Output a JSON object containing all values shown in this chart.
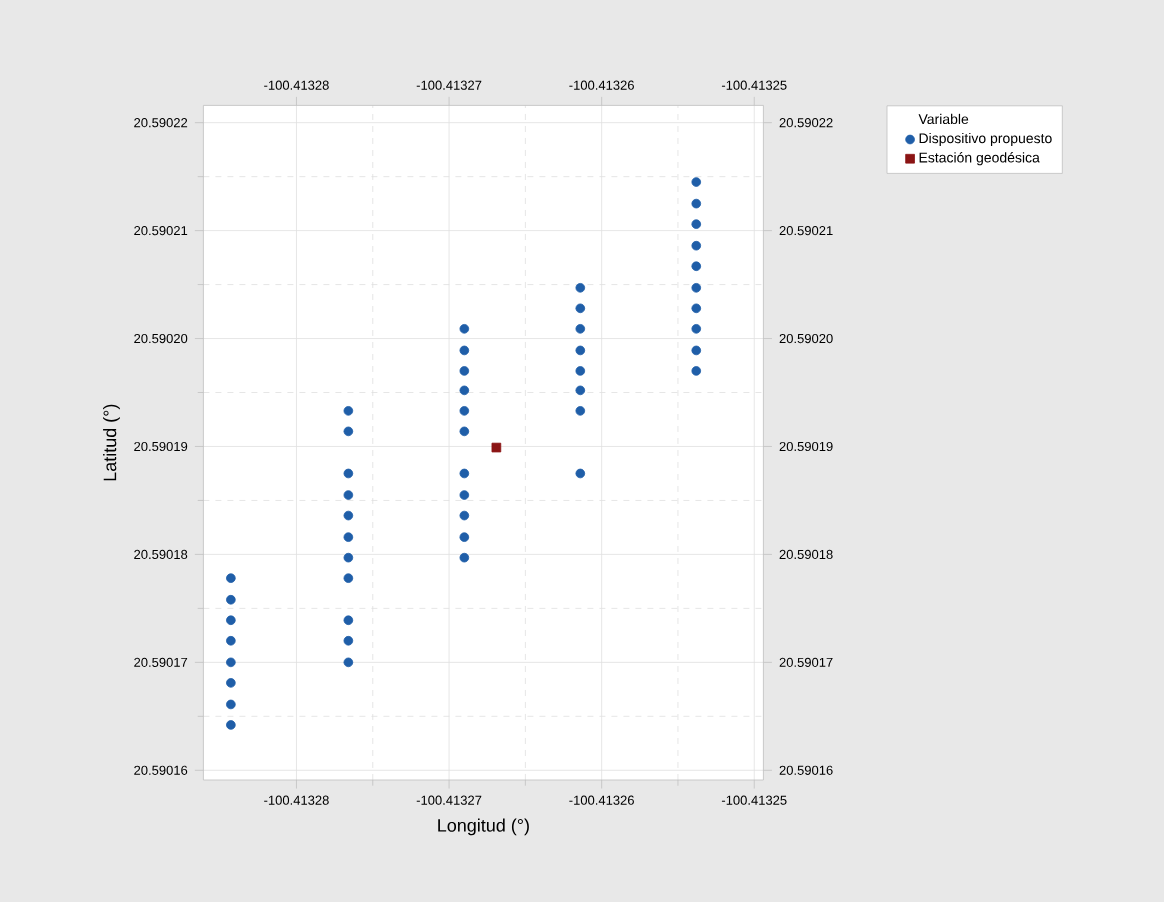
{
  "chart_data": {
    "type": "scatter",
    "xlabel": "Longitud (°)",
    "ylabel": "Latitud (°)",
    "legend_title": "Variable",
    "xlim": [
      -100.4132861,
      -100.4132494
    ],
    "ylim": [
      20.5901591,
      20.5902216
    ],
    "xticks": [
      -100.41328,
      -100.41327,
      -100.41326,
      -100.41325
    ],
    "yticks": [
      20.59016,
      20.59017,
      20.59018,
      20.59019,
      {
        "value": 20.5902,
        "label": "20.59020"
      },
      20.59021,
      20.59022
    ],
    "x2lim": [
      -100.4132861,
      -100.4132494
    ],
    "x2ticks": [
      -100.41328,
      -100.41327,
      -100.41326,
      -100.41325
    ],
    "y2lim": [
      20.5901591,
      20.5902216
    ],
    "y2ticks": [
      20.59016,
      20.59017,
      20.59018,
      20.59019,
      {
        "value": 20.5902,
        "label": "20.59020"
      },
      20.59021,
      20.59022
    ],
    "grid": true,
    "legend": "top right",
    "series": [
      {
        "name": "Dispositivo propuesto",
        "color": "#1f5ea8",
        "marker": "circle",
        "x": [
          -100.4132843,
          -100.4132843,
          -100.4132843,
          -100.4132843,
          -100.4132843,
          -100.4132843,
          -100.4132843,
          -100.4132843,
          -100.4132766,
          -100.4132766,
          -100.4132766,
          -100.4132766,
          -100.4132766,
          -100.4132766,
          -100.4132766,
          -100.4132766,
          -100.4132766,
          -100.4132766,
          -100.4132766,
          -100.413269,
          -100.413269,
          -100.413269,
          -100.413269,
          -100.413269,
          -100.413269,
          -100.413269,
          -100.413269,
          -100.413269,
          -100.413269,
          -100.413269,
          -100.4132614,
          -100.4132614,
          -100.4132614,
          -100.4132614,
          -100.4132614,
          -100.4132614,
          -100.4132614,
          -100.4132614,
          -100.4132538,
          -100.4132538,
          -100.4132538,
          -100.4132538,
          -100.4132538,
          -100.4132538,
          -100.4132538,
          -100.4132538,
          -100.4132538,
          -100.4132538
        ],
        "values": [
          20.5901778,
          20.5901758,
          20.5901739,
          20.590172,
          20.59017,
          20.5901681,
          20.5901661,
          20.5901642,
          20.5901933,
          20.5901914,
          20.5901875,
          20.5901855,
          20.5901836,
          20.5901816,
          20.5901797,
          20.5901778,
          20.5901739,
          20.590172,
          20.59017,
          20.5902009,
          20.5901989,
          20.590197,
          20.5901952,
          20.5901933,
          20.5901914,
          20.5901875,
          20.5901855,
          20.5901836,
          20.5901816,
          20.5901797,
          20.5902047,
          20.5902028,
          20.5902009,
          20.5901989,
          20.590197,
          20.5901952,
          20.5901933,
          20.5901875,
          20.5902145,
          20.5902125,
          20.5902106,
          20.5902086,
          20.5902067,
          20.5902047,
          20.5902028,
          20.5902009,
          20.5901989,
          20.590197
        ]
      },
      {
        "name": "Estación geodésica",
        "color": "#8b1414",
        "marker": "square",
        "x": [
          -100.4132669
        ],
        "values": [
          20.5901899
        ]
      }
    ]
  }
}
